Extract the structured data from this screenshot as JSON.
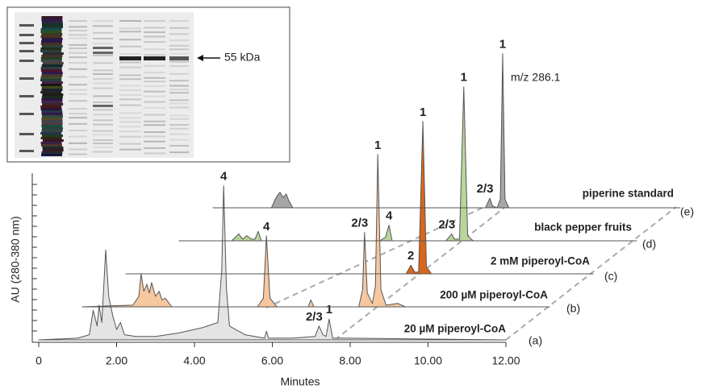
{
  "chart_data": {
    "type": "line",
    "x_label": "Minutes",
    "y_label": "AU (280-380 nm)",
    "xlim": [
      0,
      12
    ],
    "xticks": [
      0,
      {
        "value": 2,
        "label": "2.00"
      },
      {
        "value": 4,
        "label": "4.00"
      },
      {
        "value": 6,
        "label": "6.00"
      },
      {
        "value": 8,
        "label": "8.00"
      },
      {
        "value": 10,
        "label": "10.00"
      },
      {
        "value": 12,
        "label": "12.00"
      }
    ],
    "ylim": [
      0,
      100
    ],
    "note": "m/z 286.1",
    "inset_label": "55 kDa",
    "series": [
      {
        "name": "20 µM piperoyl-CoA",
        "tag": "(a)",
        "color": "#e4e4e4",
        "x": [
          0,
          1.0,
          1.3,
          1.4,
          1.5,
          1.55,
          1.62,
          1.72,
          1.8,
          1.9,
          2.0,
          2.1,
          2.2,
          2.5,
          3.0,
          3.6,
          4.2,
          4.6,
          4.7,
          4.75,
          4.82,
          4.9,
          5.3,
          5.8,
          5.85,
          5.9,
          6.5,
          7.1,
          7.2,
          7.3,
          7.38,
          7.46,
          7.55,
          8,
          12
        ],
        "values": [
          0,
          1,
          3,
          17,
          8,
          20,
          10,
          52,
          25,
          14,
          6,
          10,
          3,
          2,
          2,
          4,
          7,
          10,
          40,
          89,
          30,
          8,
          3,
          1,
          5,
          1,
          1,
          2,
          8,
          3,
          2,
          12,
          1,
          1,
          0
        ],
        "annotations": [
          {
            "x": 4.75,
            "text": "4"
          },
          {
            "x": 7.2,
            "text": "2/3"
          },
          {
            "x": 7.46,
            "text": "1"
          }
        ]
      },
      {
        "name": "200 µM piperoyl-CoA",
        "tag": "(b)",
        "color": "#f7c7a0",
        "x": [
          0,
          1.3,
          1.45,
          1.51,
          1.58,
          1.66,
          1.72,
          1.78,
          1.88,
          1.97,
          2.05,
          2.13,
          2.3,
          4.5,
          4.65,
          4.73,
          4.82,
          5.0,
          5.8,
          5.87,
          5.95,
          7.1,
          7.2,
          7.25,
          7.32,
          7.45,
          7.53,
          7.59,
          7.67,
          7.8,
          8.1,
          8.3,
          12
        ],
        "values": [
          0,
          1,
          6,
          19,
          9,
          13,
          8,
          14,
          6,
          9,
          4,
          5,
          0,
          0,
          5,
          41,
          5,
          0,
          0,
          4,
          0,
          0,
          10,
          43,
          8,
          2,
          12,
          88,
          10,
          1,
          2,
          0,
          0
        ],
        "annotations": [
          {
            "x": 4.73,
            "text": "4"
          },
          {
            "x": 7.25,
            "text": "2/3"
          },
          {
            "x": 7.59,
            "text": "1"
          }
        ]
      },
      {
        "name": "2 mM piperoyl-CoA",
        "tag": "(c)",
        "color": "#d9661a",
        "x": [
          0,
          7.2,
          7.32,
          7.42,
          7.52,
          7.63,
          7.72,
          7.85,
          12
        ],
        "values": [
          0,
          0,
          5,
          1,
          1,
          88,
          4,
          0,
          0
        ],
        "annotations": [
          {
            "x": 7.32,
            "text": "2"
          },
          {
            "x": 7.63,
            "text": "1"
          }
        ]
      },
      {
        "name": "black pepper fruits",
        "tag": "(d)",
        "color": "#b9d59c",
        "x": [
          0.25,
          1.6,
          1.78,
          1.88,
          1.99,
          2.1,
          2.2,
          2.28,
          2.36,
          5.4,
          5.55,
          5.64,
          5.72,
          7.1,
          7.18,
          7.25,
          7.32,
          7.45,
          7.56,
          7.66,
          7.8,
          12
        ],
        "values": [
          0,
          0,
          4,
          1,
          3,
          1,
          1,
          5.5,
          0,
          0,
          2,
          9,
          0,
          0,
          2,
          4,
          1,
          1,
          89,
          3,
          0,
          0
        ],
        "annotations": [
          {
            "x": 5.64,
            "text": "4"
          },
          {
            "x": 7.25,
            "text": "2/3"
          },
          {
            "x": 7.56,
            "text": "1"
          }
        ]
      },
      {
        "name": "piperine standard",
        "tag": "(e)",
        "color": "#a6a6a6",
        "x": [
          0,
          1.5,
          1.58,
          1.65,
          1.72,
          1.8,
          1.88,
          1.95,
          2.05,
          7.0,
          7.06,
          7.11,
          7.18,
          7.3,
          7.38,
          7.44,
          7.5,
          7.6,
          12
        ],
        "values": [
          0,
          0,
          4,
          7,
          9,
          6,
          8,
          4,
          0,
          0,
          3,
          5.5,
          1,
          0,
          5,
          89,
          5,
          0,
          0
        ],
        "annotations": [
          {
            "x": 7.11,
            "text": "2/3"
          },
          {
            "x": 7.44,
            "text": "1"
          }
        ]
      }
    ]
  }
}
